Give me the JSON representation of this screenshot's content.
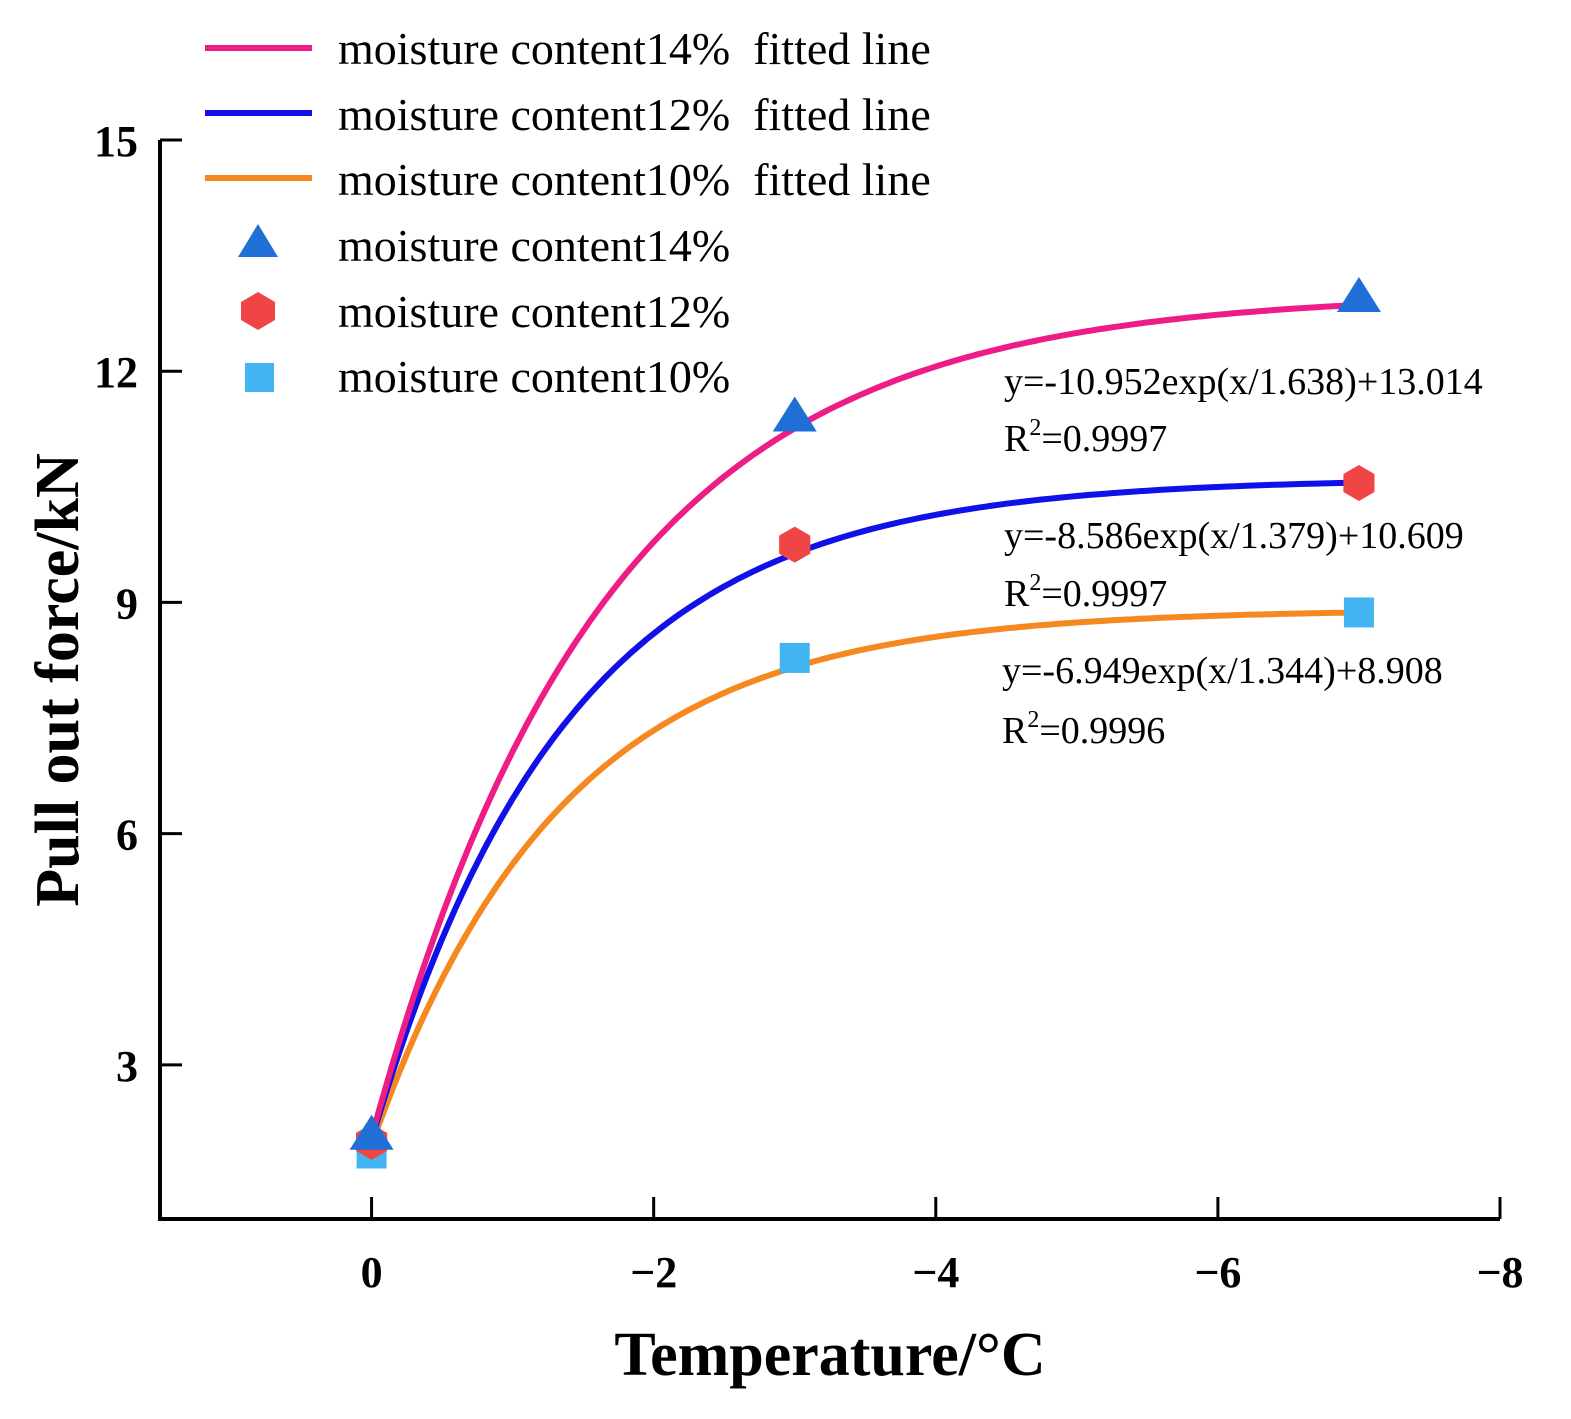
{
  "chart_data": {
    "type": "scatter",
    "xlabel": "Temperature/°C",
    "ylabel": "Pull out force/kN",
    "xlim": [
      1.5,
      -8
    ],
    "ylim": [
      1,
      15
    ],
    "x_ticks": [
      0,
      -2,
      -4,
      -6,
      -8
    ],
    "x_tick_labels": [
      "0",
      "−2",
      "−4",
      "−6",
      "−8"
    ],
    "y_ticks": [
      3,
      6,
      9,
      12,
      15
    ],
    "y_tick_labels": [
      "3",
      "6",
      "9",
      "12",
      "15"
    ],
    "series": [
      {
        "name": "moisture content14%",
        "marker": "triangle",
        "color": "#1f6fd6",
        "x": [
          0,
          -3,
          -7
        ],
        "y": [
          2.08,
          11.4,
          12.95
        ]
      },
      {
        "name": "moisture content12%",
        "marker": "hexagon",
        "color": "#f04545",
        "x": [
          0,
          -3,
          -7
        ],
        "y": [
          2.0,
          9.75,
          10.55
        ]
      },
      {
        "name": "moisture content10%",
        "marker": "square",
        "color": "#43b4f2",
        "x": [
          0,
          -3,
          -7
        ],
        "y": [
          1.85,
          8.28,
          8.87
        ]
      }
    ],
    "fits": [
      {
        "name": "moisture content14%  fitted line",
        "color": "#ee1c87",
        "a": 10.952,
        "b": 1.638,
        "c": 13.014,
        "x_range": [
          0,
          -7
        ],
        "equation": "y=-10.952exp(x/1.638)+13.014",
        "r2_label": "R",
        "r2_sup": "2",
        "r2_value": "=0.9997"
      },
      {
        "name": "moisture content12%  fitted line",
        "color": "#1010e8",
        "a": 8.586,
        "b": 1.379,
        "c": 10.609,
        "x_range": [
          0,
          -7
        ],
        "equation": "y=-8.586exp(x/1.379)+10.609",
        "r2_label": "R",
        "r2_sup": "2",
        "r2_value": "=0.9997"
      },
      {
        "name": "moisture content10%  fitted line",
        "color": "#f5891f",
        "a": 6.949,
        "b": 1.344,
        "c": 8.908,
        "x_range": [
          0,
          -7
        ],
        "equation": "y=-6.949exp(x/1.344)+8.908",
        "r2_label": "R",
        "r2_sup": "2",
        "r2_value": "=0.9996"
      }
    ],
    "legend": {
      "placement": "top-left",
      "entries": [
        "moisture content14%  fitted line",
        "moisture content12%  fitted line",
        "moisture content10%  fitted line",
        "moisture content14%",
        "moisture content12%",
        "moisture content10%"
      ]
    }
  }
}
